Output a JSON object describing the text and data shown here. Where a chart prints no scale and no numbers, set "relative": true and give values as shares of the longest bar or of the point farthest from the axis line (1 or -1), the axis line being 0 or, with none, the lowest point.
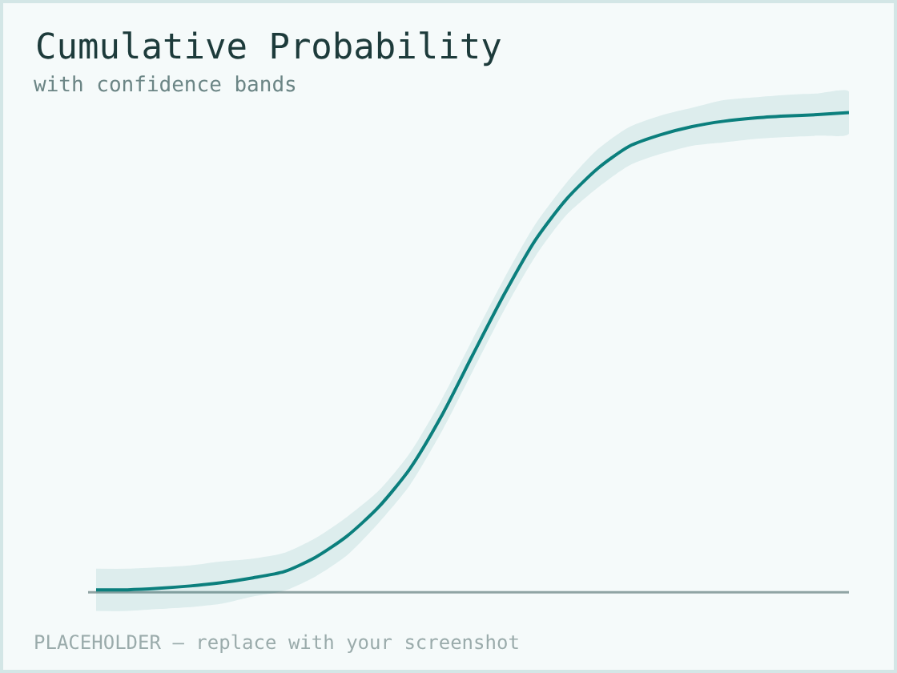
{
  "chart_data": {
    "type": "line",
    "title": "Cumulative Probability",
    "subtitle": "with confidence bands",
    "annotations": [
      "PLACEHOLDER — replace with your screenshot"
    ],
    "categories": [
      null,
      null,
      null,
      null,
      null,
      null,
      null,
      null,
      null,
      null,
      null,
      null,
      null,
      null,
      null,
      null,
      null,
      null,
      null,
      null,
      null,
      null,
      null,
      null,
      null
    ],
    "series": [
      {
        "color": "#0b7f7d",
        "values": [
          0.005,
          0.005,
          0.008,
          0.013,
          0.02,
          0.03,
          0.043,
          0.073,
          0.117,
          0.177,
          0.257,
          0.366,
          0.494,
          0.62,
          0.734,
          0.82,
          0.884,
          0.93,
          0.954,
          0.971,
          0.982,
          0.989,
          0.993,
          0.996,
          1.0
        ],
        "lower": [
          -0.039,
          -0.039,
          -0.035,
          -0.031,
          -0.024,
          -0.009,
          0.003,
          0.033,
          0.077,
          0.144,
          0.223,
          0.333,
          0.46,
          0.587,
          0.7,
          0.787,
          0.844,
          0.89,
          0.914,
          0.931,
          0.938,
          0.945,
          0.949,
          0.952,
          0.956
        ],
        "upper": [
          0.049,
          0.049,
          0.052,
          0.056,
          0.064,
          0.07,
          0.082,
          0.113,
          0.157,
          0.211,
          0.29,
          0.4,
          0.527,
          0.653,
          0.767,
          0.854,
          0.924,
          0.97,
          0.994,
          1.01,
          1.026,
          1.032,
          1.037,
          1.04,
          1.044
        ]
      }
    ],
    "relative": true,
    "grid": false,
    "line_style": "solid"
  }
}
